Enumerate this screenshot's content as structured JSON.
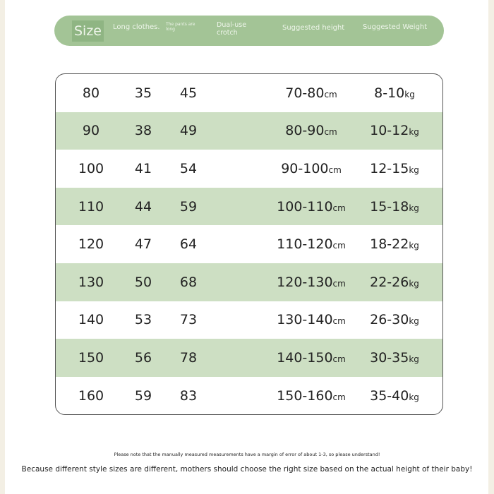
{
  "header": {
    "size": "Size",
    "long_clothes": "Long clothes.",
    "pants_long": "The pants are long",
    "dual_use_crotch": "Dual-use crotch",
    "suggested_height": "Suggested height",
    "suggested_weight": "Suggested Weight"
  },
  "units": {
    "height": "cm",
    "weight": "kg"
  },
  "rows": [
    {
      "size": "80",
      "long": "35",
      "pants": "45",
      "height": "70-80",
      "weight": "8-10"
    },
    {
      "size": "90",
      "long": "38",
      "pants": "49",
      "height": "80-90",
      "weight": "10-12"
    },
    {
      "size": "100",
      "long": "41",
      "pants": "54",
      "height": "90-100",
      "weight": "12-15"
    },
    {
      "size": "110",
      "long": "44",
      "pants": "59",
      "height": "100-110",
      "weight": "15-18"
    },
    {
      "size": "120",
      "long": "47",
      "pants": "64",
      "height": "110-120",
      "weight": "18-22"
    },
    {
      "size": "130",
      "long": "50",
      "pants": "68",
      "height": "120-130",
      "weight": "22-26"
    },
    {
      "size": "140",
      "long": "53",
      "pants": "73",
      "height": "130-140",
      "weight": "26-30"
    },
    {
      "size": "150",
      "long": "56",
      "pants": "78",
      "height": "140-150",
      "weight": "30-35"
    },
    {
      "size": "160",
      "long": "59",
      "pants": "83",
      "height": "150-160",
      "weight": "35-40"
    }
  ],
  "notes": {
    "margin_of_error": "Please note that the manually measured measurements have a margin of error of about 1-3, so please understand!",
    "advice": "Because different style sizes are different, mothers should choose the right size based on the actual height of their baby!"
  },
  "colors": {
    "header_green": "#a3c496",
    "row_green": "#cddfc3"
  }
}
